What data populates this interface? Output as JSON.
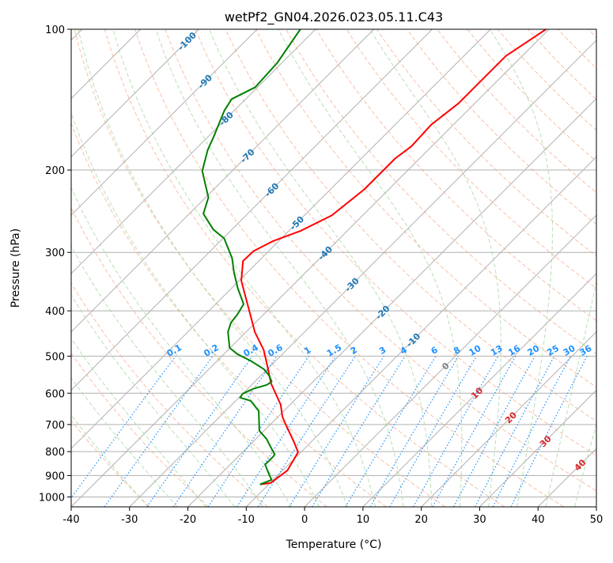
{
  "chart_data": {
    "type": "line",
    "title": "wetPf2_GN04.2026.023.05.11.C43",
    "xlabel": "Temperature (°C)",
    "ylabel": "Pressure (hPa)",
    "xlim": [
      -40,
      50
    ],
    "ylim": [
      1050,
      100
    ],
    "yscale": "log",
    "grid": true,
    "x_ticks": [
      -40,
      -30,
      -20,
      -10,
      0,
      10,
      20,
      30,
      40,
      50
    ],
    "y_ticks": [
      100,
      200,
      300,
      400,
      500,
      600,
      700,
      800,
      900,
      1000
    ],
    "isotherm_labels": [
      -100,
      -90,
      -80,
      -70,
      -60,
      -50,
      -40,
      -30,
      -20,
      -10,
      0,
      10,
      20,
      30,
      40
    ],
    "mixing_ratio_labels": [
      "0.1",
      "0.2",
      "0.4",
      "0.6",
      "1",
      "1.5",
      "2",
      "3",
      "4",
      "6",
      "8",
      "10",
      "13",
      "16",
      "20",
      "25",
      "30",
      "36"
    ],
    "colors": {
      "temperature": "#ff0000",
      "dewpoint": "#008000",
      "isotherm": "#b0b0b0",
      "dry_adiabat": "#f4a582",
      "moist_adiabat": "#a6d8a0",
      "mixing_ratio": "#1e90ff",
      "label_cold": "#1f77b4",
      "label_zero": "#808080",
      "label_warm": "#d62728"
    },
    "series": [
      {
        "name": "temperature",
        "p": [
          940,
          933,
          877,
          802,
          765,
          694,
          673,
          635,
          572,
          525,
          485,
          444,
          398,
          345,
          313,
          298,
          284,
          270,
          250,
          220,
          189,
          178,
          160,
          144,
          128,
          114,
          100
        ],
        "T": [
          -11.5,
          -9.9,
          -9.2,
          -10.5,
          -12.8,
          -17.8,
          -19.3,
          -21.6,
          -26.9,
          -30.5,
          -33.9,
          -38.5,
          -43.3,
          -49.6,
          -52.7,
          -52.6,
          -51.0,
          -48.0,
          -45.3,
          -44.2,
          -44.2,
          -43.5,
          -43.8,
          -42.8,
          -42.8,
          -42.8,
          -40.5
        ]
      },
      {
        "name": "dewpoint",
        "p": [
          940,
          919,
          894,
          853,
          821,
          811,
          789,
          751,
          722,
          655,
          623,
          613,
          601,
          587,
          576,
          567,
          550,
          533,
          512,
          495,
          480,
          444,
          424,
          407,
          387,
          358,
          331,
          309,
          280,
          268,
          248,
          229,
          201,
          181,
          170,
          149,
          141,
          133,
          118,
          100
        ],
        "T": [
          -11.5,
          -10.3,
          -11.7,
          -14.0,
          -14.0,
          -14.1,
          -15.6,
          -18.2,
          -20.8,
          -24.3,
          -27.4,
          -29.8,
          -30.0,
          -29.0,
          -27.4,
          -27.1,
          -28.6,
          -30.6,
          -34.2,
          -37.7,
          -40.1,
          -43.1,
          -44.2,
          -44.5,
          -45.2,
          -48.9,
          -52.3,
          -55.0,
          -59.8,
          -63.2,
          -67.6,
          -69.5,
          -75.1,
          -77.8,
          -79.0,
          -81.7,
          -82.4,
          -80.4,
          -80.8,
          -82.6
        ]
      }
    ]
  }
}
